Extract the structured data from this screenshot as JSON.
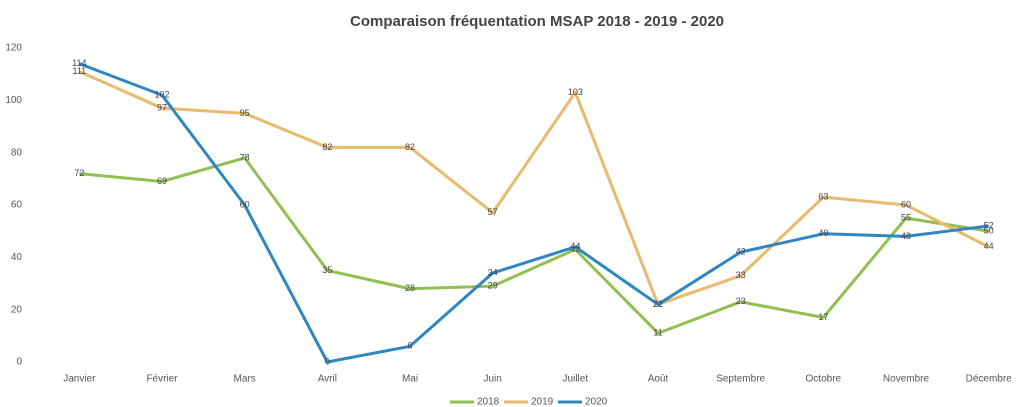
{
  "chart_data": {
    "type": "line",
    "title": "Comparaison fréquentation MSAP 2018 - 2019 - 2020",
    "categories": [
      "Janvier",
      "Février",
      "Mars",
      "Avril",
      "Mai",
      "Juin",
      "Juillet",
      "Août",
      "Septembre",
      "Octobre",
      "Novembre",
      "Décembre"
    ],
    "series": [
      {
        "name": "2018",
        "color": "#92c050",
        "values": [
          72,
          69,
          78,
          35,
          28,
          29,
          43,
          11,
          23,
          17,
          55,
          50
        ]
      },
      {
        "name": "2019",
        "color": "#e9b96e",
        "values": [
          111,
          97,
          95,
          82,
          82,
          57,
          103,
          22,
          33,
          63,
          60,
          44
        ]
      },
      {
        "name": "2020",
        "color": "#2f86c2",
        "values": [
          114,
          102,
          60,
          0,
          6,
          34,
          44,
          22,
          42,
          49,
          48,
          52
        ]
      }
    ],
    "ylim": [
      0,
      120
    ],
    "yticks": [
      0,
      20,
      40,
      60,
      80,
      100,
      120
    ],
    "grid": false,
    "legend": "bottom"
  }
}
